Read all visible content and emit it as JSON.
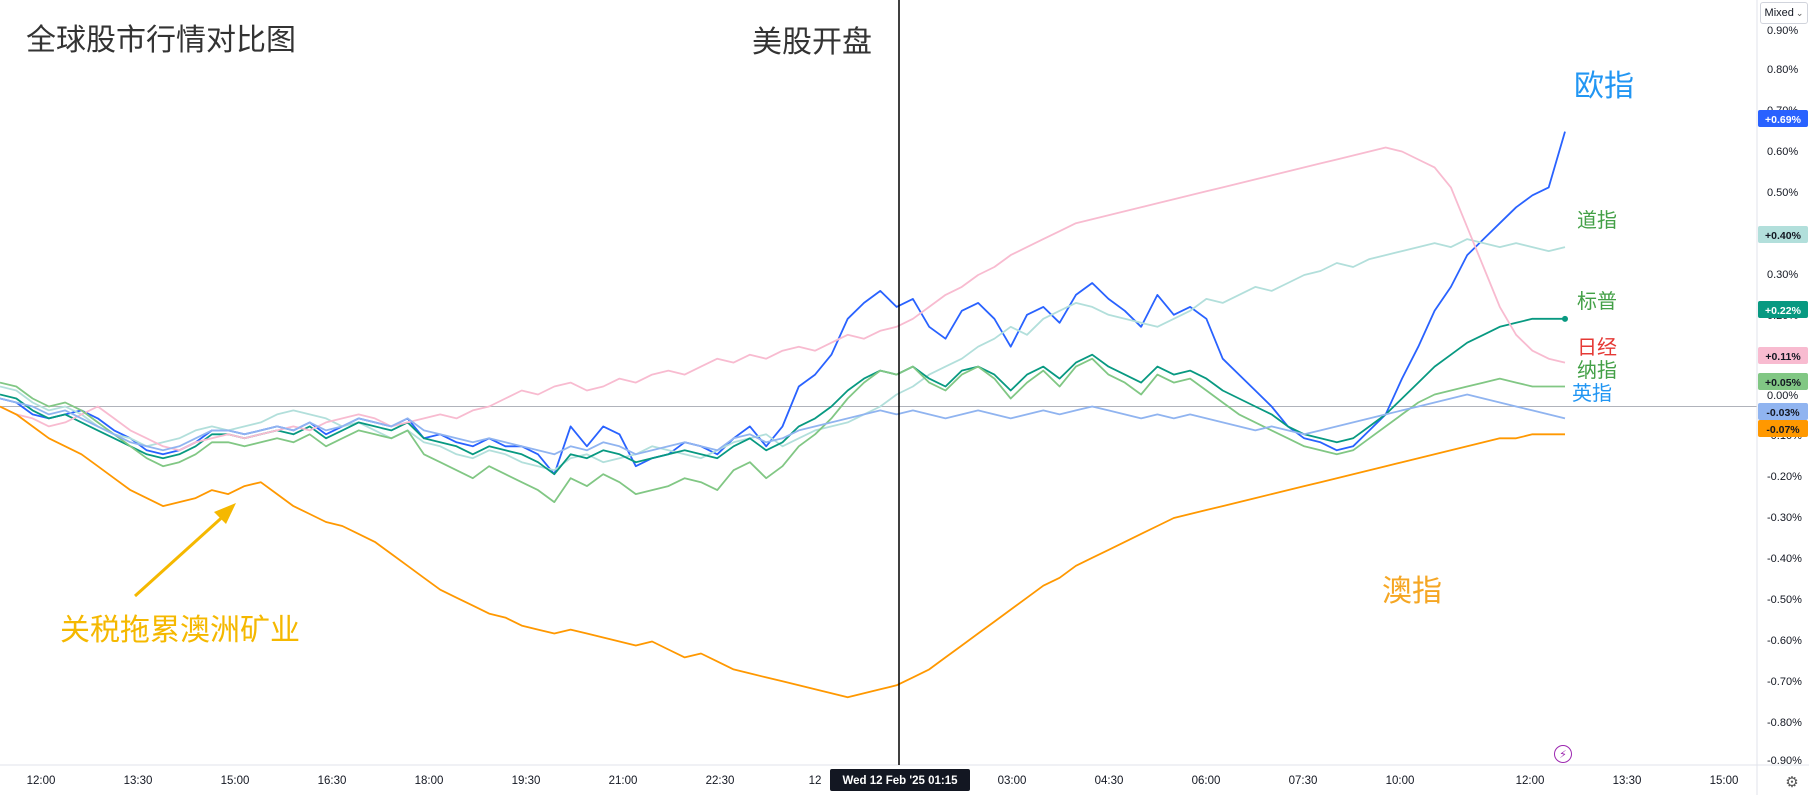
{
  "chart_data": {
    "type": "line",
    "title": "全球股市行情对比图",
    "x_ticks": [
      "12:00",
      "13:30",
      "15:00",
      "16:30",
      "18:00",
      "19:30",
      "21:00",
      "22:30",
      "12",
      "03:00",
      "04:30",
      "06:00",
      "07:30",
      "10:00",
      "12:00",
      "13:30",
      "15:00"
    ],
    "crosshair_label": "Wed 12 Feb '25   01:15",
    "y_ticks": [
      "0.90%",
      "0.80%",
      "0.70%",
      "0.60%",
      "0.50%",
      "0.40%",
      "0.30%",
      "0.20%",
      "0.10%",
      "0.00%",
      "-0.10%",
      "-0.20%",
      "-0.30%",
      "-0.40%",
      "-0.50%",
      "-0.60%",
      "-0.70%",
      "-0.80%",
      "-0.90%"
    ],
    "ylim": [
      -0.9,
      0.95
    ],
    "x_count": 97,
    "crosshair_index": 55,
    "series": [
      {
        "name": "欧指",
        "label": "欧指",
        "badge": "+0.69%",
        "color": "#2962ff",
        "label_color": "#2196f3",
        "width": 1.8,
        "values": [
          0.02,
          0.01,
          -0.02,
          -0.03,
          -0.02,
          -0.01,
          -0.03,
          -0.06,
          -0.08,
          -0.11,
          -0.12,
          -0.11,
          -0.09,
          -0.06,
          -0.06,
          -0.07,
          -0.06,
          -0.05,
          -0.06,
          -0.04,
          -0.07,
          -0.05,
          -0.03,
          -0.04,
          -0.05,
          -0.03,
          -0.08,
          -0.07,
          -0.09,
          -0.1,
          -0.08,
          -0.1,
          -0.1,
          -0.12,
          -0.17,
          -0.05,
          -0.1,
          -0.05,
          -0.07,
          -0.15,
          -0.13,
          -0.12,
          -0.09,
          -0.1,
          -0.12,
          -0.08,
          -0.05,
          -0.1,
          -0.05,
          0.05,
          0.08,
          0.13,
          0.22,
          0.26,
          0.29,
          0.25,
          0.27,
          0.2,
          0.17,
          0.24,
          0.26,
          0.22,
          0.15,
          0.23,
          0.25,
          0.21,
          0.28,
          0.31,
          0.27,
          0.24,
          0.2,
          0.28,
          0.23,
          0.25,
          0.22,
          0.12,
          0.08,
          0.04,
          0.0,
          -0.05,
          -0.08,
          -0.09,
          -0.11,
          -0.1,
          -0.06,
          -0.02,
          0.07,
          0.15,
          0.24,
          0.3,
          0.38,
          0.42,
          0.46,
          0.5,
          0.53,
          0.55,
          0.69
        ]
      },
      {
        "name": "道指",
        "label": "道指",
        "badge": "+0.40%",
        "color": "#b2dfdb",
        "label_color": "#43a047",
        "width": 1.8,
        "values": [
          0.05,
          0.04,
          0.01,
          -0.01,
          0.0,
          -0.02,
          -0.05,
          -0.07,
          -0.08,
          -0.1,
          -0.09,
          -0.08,
          -0.06,
          -0.05,
          -0.06,
          -0.05,
          -0.04,
          -0.02,
          -0.01,
          -0.02,
          -0.03,
          -0.05,
          -0.04,
          -0.06,
          -0.08,
          -0.06,
          -0.09,
          -0.1,
          -0.12,
          -0.13,
          -0.11,
          -0.12,
          -0.14,
          -0.15,
          -0.16,
          -0.13,
          -0.12,
          -0.14,
          -0.13,
          -0.12,
          -0.1,
          -0.11,
          -0.12,
          -0.13,
          -0.11,
          -0.09,
          -0.08,
          -0.07,
          -0.1,
          -0.08,
          -0.06,
          -0.05,
          -0.04,
          -0.02,
          0.0,
          0.03,
          0.05,
          0.08,
          0.1,
          0.12,
          0.15,
          0.17,
          0.2,
          0.18,
          0.22,
          0.24,
          0.26,
          0.25,
          0.23,
          0.22,
          0.21,
          0.2,
          0.22,
          0.24,
          0.27,
          0.26,
          0.28,
          0.3,
          0.29,
          0.31,
          0.33,
          0.34,
          0.36,
          0.35,
          0.37,
          0.38,
          0.39,
          0.4,
          0.41,
          0.4,
          0.42,
          0.41,
          0.4,
          0.41,
          0.4,
          0.39,
          0.4
        ]
      },
      {
        "name": "标普",
        "label": "标普",
        "badge": "+0.22%",
        "color": "#089981",
        "label_color": "#43a047",
        "width": 1.8,
        "end_dot": true,
        "values": [
          0.03,
          0.02,
          -0.01,
          -0.03,
          -0.02,
          -0.04,
          -0.06,
          -0.08,
          -0.1,
          -0.12,
          -0.13,
          -0.12,
          -0.1,
          -0.07,
          -0.07,
          -0.08,
          -0.07,
          -0.06,
          -0.07,
          -0.05,
          -0.08,
          -0.06,
          -0.04,
          -0.05,
          -0.06,
          -0.04,
          -0.08,
          -0.09,
          -0.1,
          -0.12,
          -0.1,
          -0.11,
          -0.12,
          -0.14,
          -0.17,
          -0.12,
          -0.13,
          -0.11,
          -0.12,
          -0.14,
          -0.13,
          -0.12,
          -0.11,
          -0.12,
          -0.13,
          -0.1,
          -0.08,
          -0.11,
          -0.09,
          -0.05,
          -0.03,
          0.0,
          0.04,
          0.07,
          0.09,
          0.08,
          0.1,
          0.07,
          0.05,
          0.09,
          0.1,
          0.08,
          0.04,
          0.08,
          0.1,
          0.07,
          0.11,
          0.13,
          0.1,
          0.08,
          0.06,
          0.1,
          0.08,
          0.09,
          0.07,
          0.04,
          0.02,
          0.0,
          -0.02,
          -0.05,
          -0.07,
          -0.08,
          -0.09,
          -0.08,
          -0.05,
          -0.02,
          0.02,
          0.06,
          0.1,
          0.13,
          0.16,
          0.18,
          0.2,
          0.21,
          0.22,
          0.22,
          0.22
        ]
      },
      {
        "name": "日经",
        "label": "日经",
        "badge": "+0.11%",
        "color": "#f8bbd0",
        "label_color": "#e53935",
        "width": 1.8,
        "values": [
          0.0,
          -0.02,
          -0.03,
          -0.05,
          -0.04,
          -0.02,
          0.0,
          -0.03,
          -0.06,
          -0.08,
          -0.1,
          -0.11,
          -0.09,
          -0.08,
          -0.07,
          -0.08,
          -0.07,
          -0.06,
          -0.05,
          -0.06,
          -0.04,
          -0.03,
          -0.02,
          -0.03,
          -0.05,
          -0.04,
          -0.03,
          -0.02,
          -0.03,
          -0.01,
          0.0,
          0.02,
          0.04,
          0.03,
          0.05,
          0.06,
          0.04,
          0.05,
          0.07,
          0.06,
          0.08,
          0.09,
          0.08,
          0.1,
          0.12,
          0.11,
          0.13,
          0.12,
          0.14,
          0.15,
          0.14,
          0.16,
          0.18,
          0.17,
          0.19,
          0.2,
          0.22,
          0.25,
          0.28,
          0.3,
          0.33,
          0.35,
          0.38,
          0.4,
          0.42,
          0.44,
          0.46,
          0.47,
          0.48,
          0.49,
          0.5,
          0.51,
          0.52,
          0.53,
          0.54,
          0.55,
          0.56,
          0.57,
          0.58,
          0.59,
          0.6,
          0.61,
          0.62,
          0.63,
          0.64,
          0.65,
          0.64,
          0.62,
          0.6,
          0.55,
          0.45,
          0.35,
          0.25,
          0.18,
          0.14,
          0.12,
          0.11
        ]
      },
      {
        "name": "纳指",
        "label": "纳指",
        "badge": "+0.05%",
        "color": "#81c784",
        "label_color": "#43a047",
        "width": 1.8,
        "values": [
          0.06,
          0.05,
          0.02,
          0.0,
          0.01,
          -0.01,
          -0.04,
          -0.07,
          -0.1,
          -0.13,
          -0.15,
          -0.14,
          -0.12,
          -0.09,
          -0.09,
          -0.1,
          -0.09,
          -0.08,
          -0.09,
          -0.07,
          -0.1,
          -0.08,
          -0.06,
          -0.07,
          -0.08,
          -0.06,
          -0.12,
          -0.14,
          -0.16,
          -0.18,
          -0.15,
          -0.17,
          -0.19,
          -0.21,
          -0.24,
          -0.18,
          -0.2,
          -0.17,
          -0.19,
          -0.22,
          -0.21,
          -0.2,
          -0.18,
          -0.19,
          -0.21,
          -0.16,
          -0.14,
          -0.18,
          -0.15,
          -0.1,
          -0.07,
          -0.03,
          0.02,
          0.06,
          0.09,
          0.08,
          0.1,
          0.06,
          0.04,
          0.08,
          0.1,
          0.07,
          0.02,
          0.06,
          0.09,
          0.05,
          0.1,
          0.12,
          0.08,
          0.06,
          0.03,
          0.08,
          0.06,
          0.07,
          0.04,
          0.01,
          -0.02,
          -0.04,
          -0.06,
          -0.08,
          -0.1,
          -0.11,
          -0.12,
          -0.11,
          -0.08,
          -0.05,
          -0.02,
          0.01,
          0.03,
          0.04,
          0.05,
          0.06,
          0.07,
          0.06,
          0.05,
          0.05,
          0.05
        ]
      },
      {
        "name": "英指",
        "label": "英指",
        "badge": "-0.03%",
        "color": "#90b4f0",
        "label_color": "#2196f3",
        "width": 1.8,
        "values": [
          0.02,
          0.01,
          0.0,
          -0.02,
          -0.01,
          -0.03,
          -0.05,
          -0.07,
          -0.09,
          -0.1,
          -0.11,
          -0.1,
          -0.08,
          -0.06,
          -0.06,
          -0.07,
          -0.06,
          -0.05,
          -0.06,
          -0.04,
          -0.06,
          -0.05,
          -0.03,
          -0.04,
          -0.05,
          -0.03,
          -0.06,
          -0.07,
          -0.08,
          -0.09,
          -0.08,
          -0.09,
          -0.1,
          -0.11,
          -0.12,
          -0.1,
          -0.11,
          -0.09,
          -0.1,
          -0.12,
          -0.11,
          -0.1,
          -0.09,
          -0.1,
          -0.11,
          -0.08,
          -0.07,
          -0.09,
          -0.08,
          -0.06,
          -0.05,
          -0.04,
          -0.03,
          -0.02,
          -0.01,
          -0.02,
          -0.01,
          -0.02,
          -0.03,
          -0.02,
          -0.01,
          -0.02,
          -0.03,
          -0.02,
          -0.01,
          -0.02,
          -0.01,
          0.0,
          -0.01,
          -0.02,
          -0.03,
          -0.02,
          -0.03,
          -0.02,
          -0.03,
          -0.04,
          -0.05,
          -0.06,
          -0.05,
          -0.06,
          -0.07,
          -0.06,
          -0.05,
          -0.04,
          -0.03,
          -0.02,
          -0.01,
          0.0,
          0.01,
          0.02,
          0.03,
          0.02,
          0.01,
          0.0,
          -0.01,
          -0.02,
          -0.03
        ]
      },
      {
        "name": "澳指",
        "label": "澳指",
        "badge": "-0.07%",
        "color": "#ff9800",
        "label_color": "#f5a623",
        "width": 1.8,
        "values": [
          0.0,
          -0.02,
          -0.05,
          -0.08,
          -0.1,
          -0.12,
          -0.15,
          -0.18,
          -0.21,
          -0.23,
          -0.25,
          -0.24,
          -0.23,
          -0.21,
          -0.22,
          -0.2,
          -0.19,
          -0.22,
          -0.25,
          -0.27,
          -0.29,
          -0.3,
          -0.32,
          -0.34,
          -0.37,
          -0.4,
          -0.43,
          -0.46,
          -0.48,
          -0.5,
          -0.52,
          -0.53,
          -0.55,
          -0.56,
          -0.57,
          -0.56,
          -0.57,
          -0.58,
          -0.59,
          -0.6,
          -0.59,
          -0.61,
          -0.63,
          -0.62,
          -0.64,
          -0.66,
          -0.67,
          -0.68,
          -0.69,
          -0.7,
          -0.71,
          -0.72,
          -0.73,
          -0.72,
          -0.71,
          -0.7,
          -0.68,
          -0.66,
          -0.63,
          -0.6,
          -0.57,
          -0.54,
          -0.51,
          -0.48,
          -0.45,
          -0.43,
          -0.4,
          -0.38,
          -0.36,
          -0.34,
          -0.32,
          -0.3,
          -0.28,
          -0.27,
          -0.26,
          -0.25,
          -0.24,
          -0.23,
          -0.22,
          -0.21,
          -0.2,
          -0.19,
          -0.18,
          -0.17,
          -0.16,
          -0.15,
          -0.14,
          -0.13,
          -0.12,
          -0.11,
          -0.1,
          -0.09,
          -0.08,
          -0.08,
          -0.07,
          -0.07,
          -0.07
        ]
      }
    ],
    "annotations": {
      "open_label": "美股开盘",
      "arrow_label": "关税拖累澳洲矿业"
    }
  },
  "controls": {
    "scale_mode": "Mixed"
  },
  "colors": {
    "grid_zero": "#b0b3bb",
    "axis_text": "#131722",
    "arrow": "#f5b800",
    "crosshair": "#000000"
  }
}
